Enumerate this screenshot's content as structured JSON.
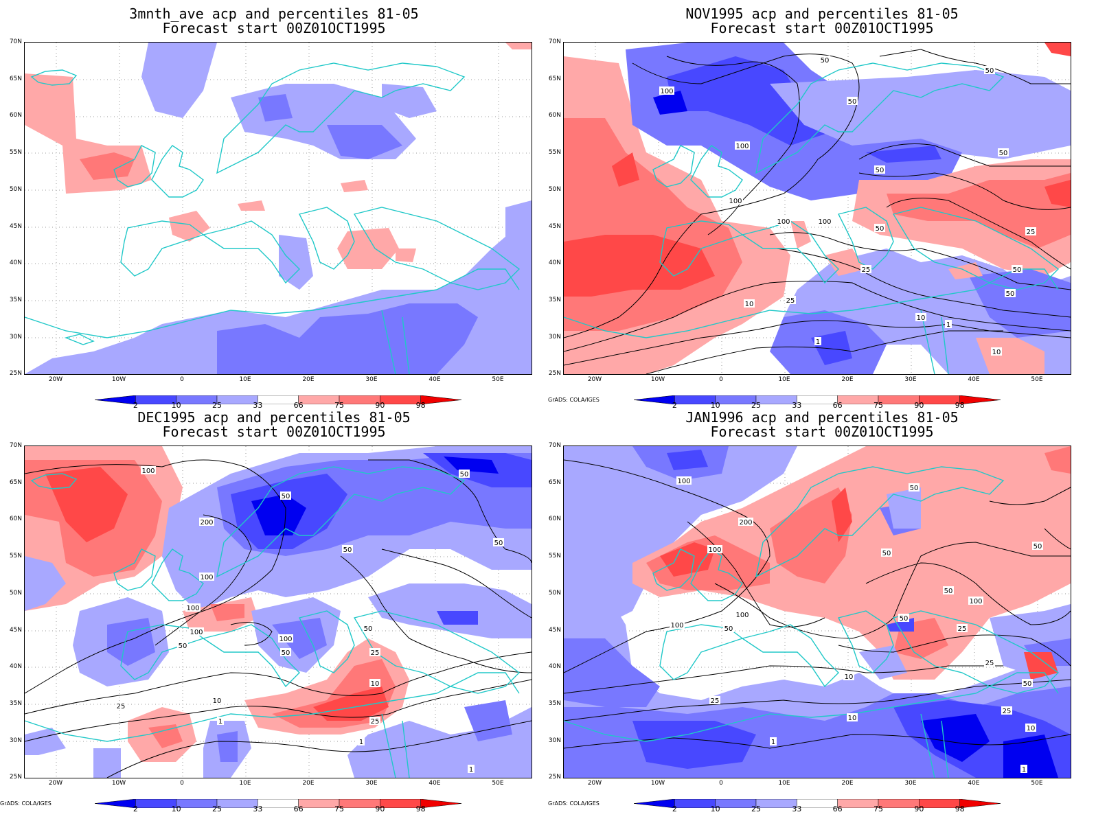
{
  "panels": [
    {
      "title_line1": "3mnth_ave acp and percentiles 81-05",
      "title_line2": "Forecast start 00Z01OCT1995",
      "credit": ""
    },
    {
      "title_line1": "NOV1995 acp and percentiles 81-05",
      "title_line2": "Forecast start 00Z01OCT1995",
      "credit": "GrADS: COLA/IGES"
    },
    {
      "title_line1": "DEC1995 acp and percentiles 81-05",
      "title_line2": "Forecast start 00Z01OCT1995",
      "credit": "GrADS: COLA/IGES"
    },
    {
      "title_line1": "JAN1996 acp and percentiles 81-05",
      "title_line2": "Forecast start 00Z01OCT1995",
      "credit": "GrADS: COLA/IGES"
    }
  ],
  "lat_labels": [
    "70N",
    "65N",
    "60N",
    "55N",
    "50N",
    "45N",
    "40N",
    "35N",
    "30N",
    "25N"
  ],
  "lon_labels": [
    "20W",
    "10W",
    "0",
    "10E",
    "20E",
    "30E",
    "40E",
    "50E"
  ],
  "colorbar": {
    "values": [
      "2",
      "10",
      "25",
      "33",
      "66",
      "75",
      "90",
      "98"
    ],
    "colors": [
      "#0000f0",
      "#4848ff",
      "#7878ff",
      "#a8a8ff",
      "#ffffff",
      "#ffa8a8",
      "#ff7878",
      "#ff4848",
      "#f00000"
    ]
  },
  "contour_labels": {
    "p1": [
      "100",
      "50",
      "50",
      "50",
      "100",
      "50",
      "50",
      "100",
      "100",
      "100",
      "50",
      "25",
      "50",
      "25",
      "50",
      "25",
      "10",
      "10",
      "1",
      "1",
      "10"
    ],
    "p2": [
      "100",
      "50",
      "50",
      "200",
      "100",
      "50",
      "50",
      "100",
      "100",
      "100",
      "50",
      "50",
      "25",
      "50",
      "25",
      "10",
      "10",
      "25",
      "1",
      "1",
      "1"
    ],
    "p3": [
      "100",
      "50",
      "50",
      "200",
      "100",
      "50",
      "50",
      "100",
      "100",
      "25",
      "50",
      "100",
      "50",
      "25",
      "25",
      "10",
      "10",
      "1",
      "50",
      "25",
      "10",
      "1"
    ]
  },
  "chart_data": {
    "type": "heatmap",
    "description_fields": {
      "region": "25N-70N, 25W-55E",
      "variable": "acp percentiles 81-05"
    }
  }
}
